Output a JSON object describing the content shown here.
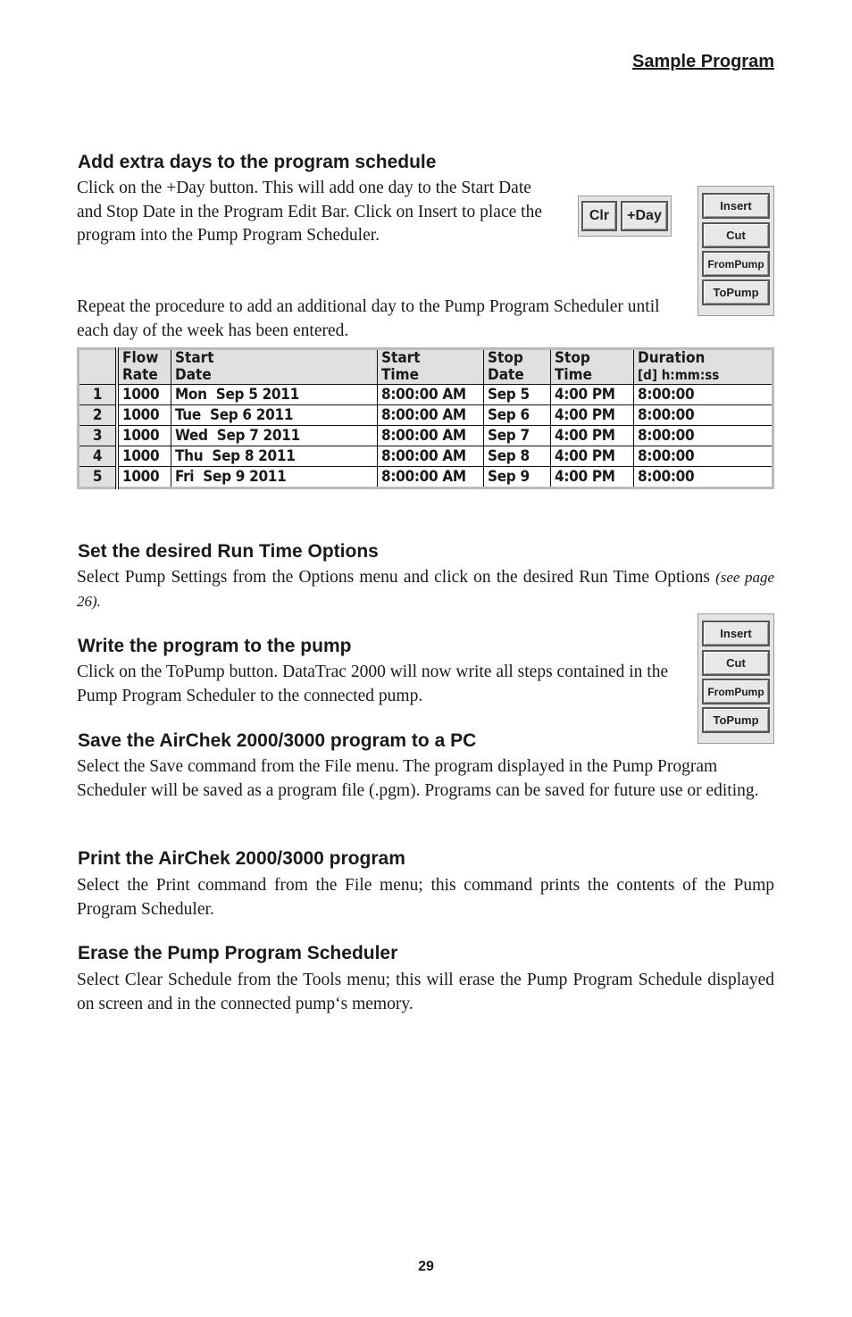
{
  "header": {
    "title": "Sample Program"
  },
  "sections": [
    {
      "heading": "Add extra days to the program schedule",
      "paragraphs": [
        "Click on the +Day button. This will add one day to the Start Date and Stop Date in the Program Edit Bar. Click on Insert to place the program into the Pump Program Scheduler.",
        "Repeat the procedure to add an additional day to the Pump Program Scheduler until each day of the week has been entered."
      ]
    },
    {
      "heading": "Set the desired Run Time Options",
      "paragraph": "Select Pump Settings from the Options menu and click on the desired Run Time Options",
      "note": "(see page 26)."
    },
    {
      "heading": "Write the program to the pump",
      "paragraph": "Click on the ToPump button. DataTrac 2000 will now write all steps contained in the Pump Program Scheduler to the connected pump."
    },
    {
      "heading": "Save the AirChek 2000/3000 program to a PC",
      "paragraph": "Select the Save command from the File menu. The program displayed in the Pump Program Scheduler will be saved as a program file (.pgm). Programs can be saved for future use or editing."
    },
    {
      "heading": "Print the AirChek 2000/3000 program",
      "paragraph": "Select the Print command from the File menu; this command prints the contents of the Pump Program Scheduler."
    },
    {
      "heading": "Erase the Pump Program Scheduler",
      "paragraph": "Select Clear Schedule from the Tools menu; this will erase the Pump Program Schedule displayed on screen and in the connected pump‘s memory."
    }
  ],
  "edit_bar": {
    "clr": "Clr",
    "plus_day": "+Day"
  },
  "button_bar": {
    "insert": "Insert",
    "cut": "Cut",
    "from_pump": "FromPump",
    "to_pump": "ToPump"
  },
  "table": {
    "headers": [
      [
        "Flow",
        "Rate"
      ],
      [
        "Start",
        "Date"
      ],
      [
        "Start",
        "Time"
      ],
      [
        "Stop",
        "Date"
      ],
      [
        "Stop",
        "Time"
      ],
      [
        "Duration",
        "[d] h:mm:ss"
      ]
    ],
    "rows": [
      [
        "1",
        "1000",
        "Mon  Sep 5 2011",
        "8:00:00 AM",
        "Sep 5",
        "4:00 PM",
        "8:00:00"
      ],
      [
        "2",
        "1000",
        "Tue  Sep 6 2011",
        "8:00:00 AM",
        "Sep 6",
        "4:00 PM",
        "8:00:00"
      ],
      [
        "3",
        "1000",
        "Wed  Sep 7 2011",
        "8:00:00 AM",
        "Sep 7",
        "4:00 PM",
        "8:00:00"
      ],
      [
        "4",
        "1000",
        "Thu  Sep 8 2011",
        "8:00:00 AM",
        "Sep 8",
        "4:00 PM",
        "8:00:00"
      ],
      [
        "5",
        "1000",
        "Fri  Sep 9 2011",
        "8:00:00 AM",
        "Sep 9",
        "4:00 PM",
        "8:00:00"
      ]
    ]
  },
  "page_number": "29"
}
